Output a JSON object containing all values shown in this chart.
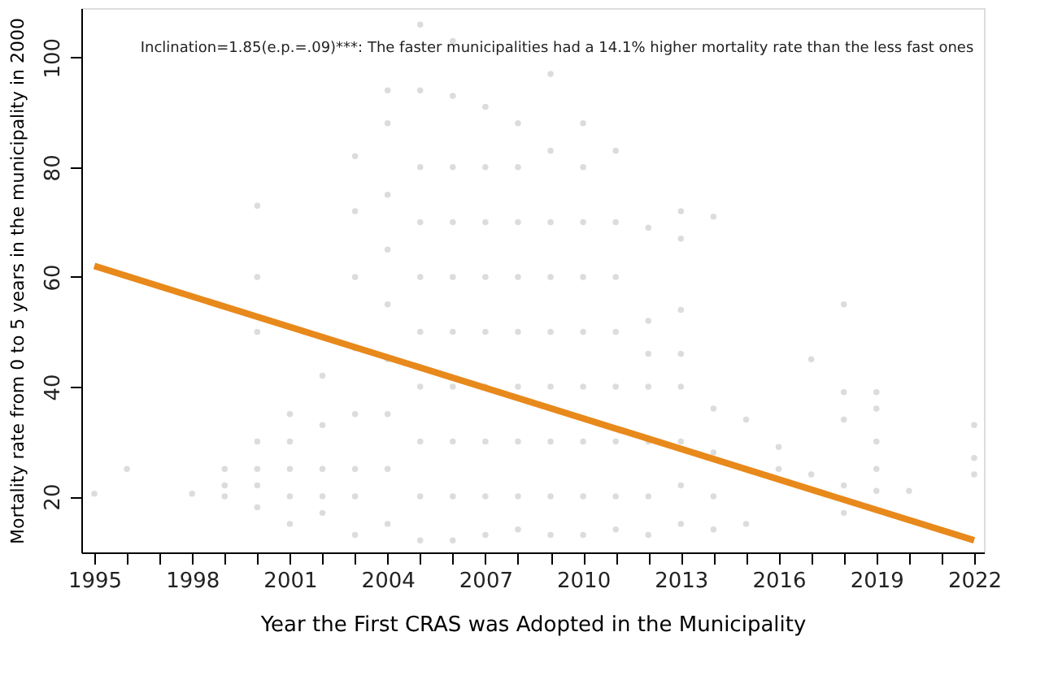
{
  "chart_data": {
    "type": "scatter",
    "xlabel": "Year the First CRAS was Adopted in the Municipality",
    "ylabel": "Mortality rate from 0 to 5 years in the municipality in 2000",
    "annotations": [
      "Inclination=1.85(e.p.=.09)***: The faster municipalities had a 14.1% higher mortality rate than the less fast ones"
    ],
    "xlim": [
      1994.6,
      2022.3
    ],
    "ylim": [
      9.8,
      109
    ],
    "xticks": [
      1995,
      {
        "value": 1996,
        "label": null
      },
      {
        "value": 1997,
        "label": null
      },
      1998,
      {
        "value": 1999,
        "label": null
      },
      {
        "value": 2000,
        "label": null
      },
      2001,
      {
        "value": 2002,
        "label": null
      },
      {
        "value": 2003,
        "label": null
      },
      2004,
      {
        "value": 2005,
        "label": null
      },
      {
        "value": 2006,
        "label": null
      },
      2007,
      {
        "value": 2008,
        "label": null
      },
      {
        "value": 2009,
        "label": null
      },
      2010,
      {
        "value": 2011,
        "label": null
      },
      {
        "value": 2012,
        "label": null
      },
      2013,
      {
        "value": 2014,
        "label": null
      },
      {
        "value": 2015,
        "label": null
      },
      2016,
      {
        "value": 2017,
        "label": null
      },
      {
        "value": 2018,
        "label": null
      },
      2019,
      {
        "value": 2020,
        "label": null
      },
      {
        "value": 2021,
        "label": null
      },
      2022
    ],
    "yticks": [
      20,
      40,
      60,
      80,
      100
    ],
    "grid": false,
    "marker": "circle",
    "series": [
      {
        "color": "#c4c4c4",
        "x": [
          1995,
          1996,
          1998,
          1999,
          1999,
          1999,
          2000,
          2000,
          2000,
          2000,
          2000,
          2000,
          2000,
          2001,
          2001,
          2001,
          2001,
          2001,
          2002,
          2002,
          2002,
          2002,
          2002,
          2003,
          2003,
          2003,
          2003,
          2003,
          2003,
          2003,
          2003,
          2004,
          2004,
          2004,
          2004,
          2004,
          2004,
          2004,
          2004,
          2004,
          2005,
          2005,
          2005,
          2005,
          2005,
          2005,
          2005,
          2005,
          2005,
          2005,
          2006,
          2006,
          2006,
          2006,
          2006,
          2006,
          2006,
          2006,
          2006,
          2006,
          2007,
          2007,
          2007,
          2007,
          2007,
          2007,
          2007,
          2007,
          2007,
          2008,
          2008,
          2008,
          2008,
          2008,
          2008,
          2008,
          2008,
          2008,
          2009,
          2009,
          2009,
          2009,
          2009,
          2009,
          2009,
          2009,
          2009,
          2010,
          2010,
          2010,
          2010,
          2010,
          2010,
          2010,
          2010,
          2010,
          2011,
          2011,
          2011,
          2011,
          2011,
          2011,
          2011,
          2011,
          2012,
          2012,
          2012,
          2012,
          2012,
          2012,
          2012,
          2013,
          2013,
          2013,
          2013,
          2013,
          2013,
          2013,
          2013,
          2014,
          2014,
          2014,
          2014,
          2014,
          2015,
          2015,
          2016,
          2016,
          2017,
          2017,
          2018,
          2018,
          2018,
          2018,
          2018,
          2019,
          2019,
          2019,
          2019,
          2019,
          2020,
          2022,
          2022,
          2022
        ],
        "values": [
          20.5,
          25,
          20.5,
          20,
          22,
          25,
          18,
          22,
          25,
          30,
          50,
          60,
          73,
          15,
          20,
          25,
          30,
          35,
          17,
          20,
          25,
          33,
          42,
          13,
          20,
          25,
          35,
          47,
          60,
          72,
          82,
          15,
          25,
          35,
          45,
          55,
          65,
          75,
          88,
          94,
          12,
          20,
          30,
          40,
          50,
          60,
          70,
          80,
          94,
          106,
          12,
          20,
          30,
          40,
          50,
          60,
          70,
          80,
          93,
          103,
          13,
          20,
          30,
          40,
          50,
          60,
          70,
          80,
          91,
          14,
          20,
          30,
          40,
          50,
          60,
          70,
          80,
          88,
          13,
          20,
          30,
          40,
          50,
          60,
          70,
          83,
          97,
          13,
          20,
          30,
          40,
          50,
          60,
          70,
          80,
          88,
          14,
          20,
          30,
          40,
          50,
          60,
          70,
          83,
          13,
          20,
          30,
          40,
          46,
          52,
          69,
          15,
          22,
          30,
          40,
          46,
          54,
          67,
          72,
          14,
          20,
          28,
          36,
          71,
          15,
          34,
          25,
          29,
          24,
          45,
          17,
          22,
          34,
          39,
          55,
          21,
          25,
          30,
          36,
          39,
          21,
          24,
          27,
          33
        ]
      },
      {
        "type": "line",
        "marker": "none",
        "line_style": "solid",
        "color": "#e8891b",
        "x": [
          1995,
          2022
        ],
        "values": [
          62,
          12
        ]
      }
    ]
  }
}
